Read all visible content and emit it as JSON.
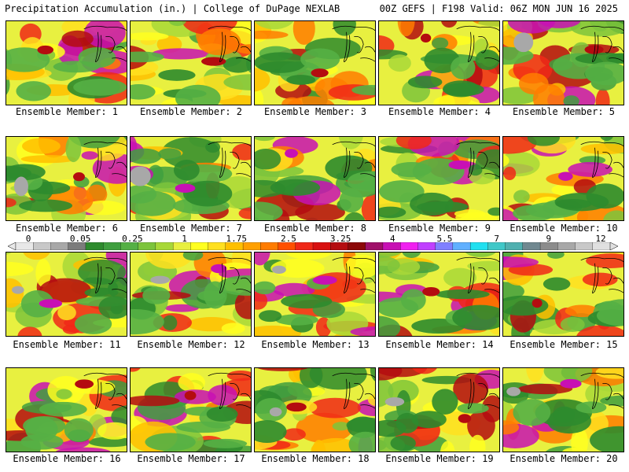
{
  "header": {
    "title_left": "Precipitation Accumulation (in.) | College of DuPage NEXLAB",
    "title_right": "00Z GEFS | F198 Valid: 06Z MON JUN 16 2025"
  },
  "members": [
    {
      "label": "Ensemble Member: 1"
    },
    {
      "label": "Ensemble Member: 2"
    },
    {
      "label": "Ensemble Member: 3"
    },
    {
      "label": "Ensemble Member: 4"
    },
    {
      "label": "Ensemble Member: 5"
    },
    {
      "label": "Ensemble Member: 6"
    },
    {
      "label": "Ensemble Member: 7"
    },
    {
      "label": "Ensemble Member: 8"
    },
    {
      "label": "Ensemble Member: 9"
    },
    {
      "label": "Ensemble Member: 10"
    },
    {
      "label": "Ensemble Member: 11"
    },
    {
      "label": "Ensemble Member: 12"
    },
    {
      "label": "Ensemble Member: 13"
    },
    {
      "label": "Ensemble Member: 14"
    },
    {
      "label": "Ensemble Member: 15"
    },
    {
      "label": "Ensemble Member: 16"
    },
    {
      "label": "Ensemble Member: 17"
    },
    {
      "label": "Ensemble Member: 18"
    },
    {
      "label": "Ensemble Member: 19"
    },
    {
      "label": "Ensemble Member: 20"
    }
  ],
  "colorbar": {
    "labels": [
      "0",
      "0.05",
      "0.25",
      "1",
      "1.75",
      "2.5",
      "3.25",
      "4",
      "5.5",
      "7",
      "9",
      "12"
    ],
    "colors": [
      "#e8e8e8",
      "#c8c8c8",
      "#a8a8a8",
      "#7c7c7c",
      "#2e8b2e",
      "#3f9f3f",
      "#55b045",
      "#7cc43c",
      "#a8d838",
      "#e8f040",
      "#ffff20",
      "#ffe020",
      "#ffc000",
      "#ffa000",
      "#ff7c00",
      "#ff5000",
      "#f02818",
      "#d81010",
      "#b40c10",
      "#8c0808",
      "#a0106a",
      "#c810b4",
      "#f020f0",
      "#c040ff",
      "#8080ff",
      "#60b0ff",
      "#20e0f0",
      "#40c8c8",
      "#50b0b0",
      "#708890",
      "#8c8c8c",
      "#a8a8a8",
      "#c8c8c8",
      "#e0e0e0"
    ]
  }
}
